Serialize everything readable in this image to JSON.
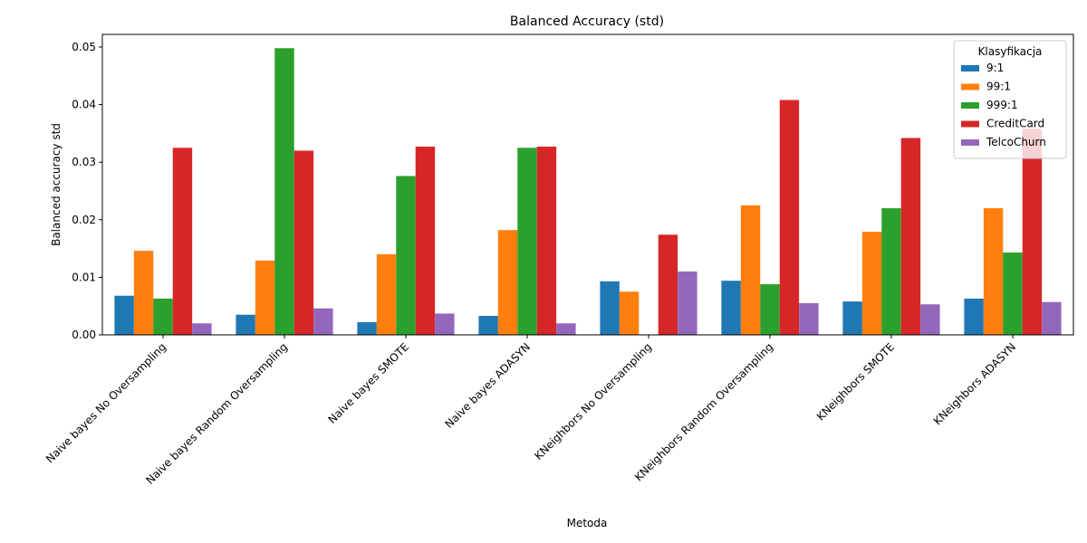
{
  "chart_data": {
    "type": "bar",
    "title": "Balanced Accuracy (std)",
    "xlabel": "Metoda",
    "ylabel": "Balanced accuracy std",
    "ylim": [
      0,
      0.0522
    ],
    "yticks": [
      "0.00",
      "0.01",
      "0.02",
      "0.03",
      "0.04",
      "0.05"
    ],
    "grid": false,
    "legend": {
      "title": "Klasyfikacja",
      "placement": "top-right"
    },
    "categories": [
      "Naive bayes No Oversampling",
      "Naive bayes Random Oversampling",
      "Naive bayes SMOTE",
      "Naive bayes ADASYN",
      "KNeighbors No Oversampling",
      "KNeighbors Random Oversampling",
      "KNeighbors SMOTE",
      "KNeighbors ADASYN"
    ],
    "series": [
      {
        "name": "9:1",
        "color": "#1f77b4",
        "values": [
          0.0068,
          0.0035,
          0.0022,
          0.0033,
          0.0093,
          0.0094,
          0.0058,
          0.0063
        ]
      },
      {
        "name": "99:1",
        "color": "#ff7f0e",
        "values": [
          0.0146,
          0.0129,
          0.014,
          0.0182,
          0.0075,
          0.0225,
          0.0179,
          0.022
        ]
      },
      {
        "name": "999:1",
        "color": "#2ca02c",
        "values": [
          0.0063,
          0.0498,
          0.0276,
          0.0325,
          0.0,
          0.0088,
          0.022,
          0.0143
        ]
      },
      {
        "name": "CreditCard",
        "color": "#d62728",
        "values": [
          0.0325,
          0.032,
          0.0327,
          0.0327,
          0.0174,
          0.0408,
          0.0342,
          0.0358
        ]
      },
      {
        "name": "TelcoChurn",
        "color": "#9467bd",
        "values": [
          0.002,
          0.0046,
          0.0037,
          0.002,
          0.011,
          0.0055,
          0.0053,
          0.0057
        ]
      }
    ]
  }
}
